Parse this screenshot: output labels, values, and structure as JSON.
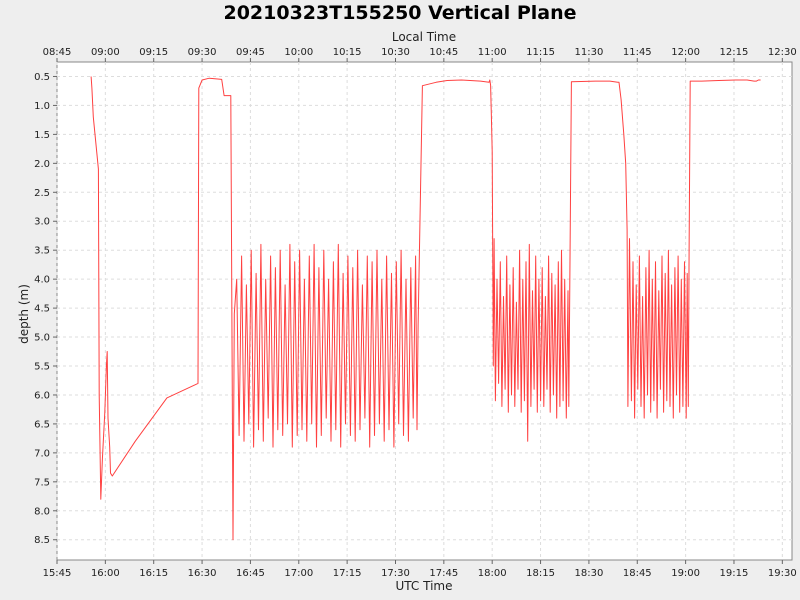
{
  "chart_data": {
    "type": "line",
    "title": "20210323T155250 Vertical Plane",
    "xlabel": "UTC Time",
    "x2label": "Local Time",
    "ylabel": "depth (m)",
    "xlim": [
      "15:45",
      "19:33"
    ],
    "ylim": [
      0.25,
      8.85
    ],
    "y_inverted": true,
    "grid": true,
    "line_color": "#ff4040",
    "x_ticks": [
      "15:45",
      "16:00",
      "16:15",
      "16:30",
      "16:45",
      "17:00",
      "17:15",
      "17:30",
      "17:45",
      "18:00",
      "18:15",
      "18:30",
      "18:45",
      "19:00",
      "19:15",
      "19:30"
    ],
    "x2_ticks": [
      "08:45",
      "09:00",
      "09:15",
      "09:30",
      "09:45",
      "10:00",
      "10:15",
      "10:30",
      "10:45",
      "11:00",
      "11:15",
      "11:30",
      "11:45",
      "12:00",
      "12:15",
      "12:30"
    ],
    "y_ticks": [
      "0.5",
      "1.0",
      "1.5",
      "2.0",
      "2.5",
      "3.0",
      "3.5",
      "4.0",
      "4.5",
      "5.0",
      "5.5",
      "6.0",
      "6.5",
      "7.0",
      "7.5",
      "8.0",
      "8.5"
    ],
    "series": [
      {
        "values": [
          {
            "x": "15:55:35",
            "y": 0.5
          },
          {
            "x": "15:55:50",
            "y": 0.7
          },
          {
            "x": "15:56:15",
            "y": 1.2
          },
          {
            "x": "15:57:50",
            "y": 2.1
          },
          {
            "x": "15:58:05",
            "y": 6.0
          },
          {
            "x": "15:58:35",
            "y": 7.8
          },
          {
            "x": "15:59:05",
            "y": 7.1
          },
          {
            "x": "15:59:50",
            "y": 6.3
          },
          {
            "x": "16:00:20",
            "y": 5.5
          },
          {
            "x": "16:00:35",
            "y": 5.25
          },
          {
            "x": "16:00:50",
            "y": 6.4
          },
          {
            "x": "16:01:20",
            "y": 6.9
          },
          {
            "x": "16:01:35",
            "y": 7.35
          },
          {
            "x": "16:02:10",
            "y": 7.4
          },
          {
            "x": "16:09:15",
            "y": 6.8
          },
          {
            "x": "16:19:05",
            "y": 6.05
          },
          {
            "x": "16:28:45",
            "y": 5.8
          },
          {
            "x": "16:29:00",
            "y": 0.7
          },
          {
            "x": "16:30:00",
            "y": 0.56
          },
          {
            "x": "16:32:15",
            "y": 0.53
          },
          {
            "x": "16:36:05",
            "y": 0.55
          },
          {
            "x": "16:36:50",
            "y": 0.83
          },
          {
            "x": "16:38:55",
            "y": 0.83
          },
          {
            "x": "16:39:35",
            "y": 8.5
          },
          {
            "x": "16:40:00",
            "y": 4.6
          },
          {
            "x": "16:40:45",
            "y": 4.0
          },
          {
            "x": "16:41:30",
            "y": 6.7
          },
          {
            "x": "16:42:15",
            "y": 3.6
          },
          {
            "x": "16:43:00",
            "y": 6.8
          },
          {
            "x": "16:43:45",
            "y": 4.1
          },
          {
            "x": "16:44:30",
            "y": 6.5
          },
          {
            "x": "16:45:15",
            "y": 3.5
          },
          {
            "x": "16:46:00",
            "y": 6.9
          },
          {
            "x": "16:46:45",
            "y": 3.9
          },
          {
            "x": "16:47:30",
            "y": 6.6
          },
          {
            "x": "16:48:15",
            "y": 3.4
          },
          {
            "x": "16:49:00",
            "y": 6.8
          },
          {
            "x": "16:49:45",
            "y": 4.0
          },
          {
            "x": "16:50:30",
            "y": 6.4
          },
          {
            "x": "16:51:15",
            "y": 3.6
          },
          {
            "x": "16:52:00",
            "y": 6.9
          },
          {
            "x": "16:52:45",
            "y": 3.8
          },
          {
            "x": "16:53:30",
            "y": 6.6
          },
          {
            "x": "16:54:15",
            "y": 3.5
          },
          {
            "x": "16:55:00",
            "y": 6.7
          },
          {
            "x": "16:55:45",
            "y": 4.1
          },
          {
            "x": "16:56:30",
            "y": 6.5
          },
          {
            "x": "16:57:15",
            "y": 3.4
          },
          {
            "x": "16:58:00",
            "y": 6.9
          },
          {
            "x": "16:58:45",
            "y": 3.7
          },
          {
            "x": "16:59:30",
            "y": 6.7
          },
          {
            "x": "17:00:15",
            "y": 3.5
          },
          {
            "x": "17:01:00",
            "y": 6.6
          },
          {
            "x": "17:01:45",
            "y": 4.0
          },
          {
            "x": "17:02:30",
            "y": 6.8
          },
          {
            "x": "17:03:15",
            "y": 3.6
          },
          {
            "x": "17:04:00",
            "y": 6.5
          },
          {
            "x": "17:04:45",
            "y": 3.4
          },
          {
            "x": "17:05:30",
            "y": 6.9
          },
          {
            "x": "17:06:15",
            "y": 3.8
          },
          {
            "x": "17:07:00",
            "y": 6.7
          },
          {
            "x": "17:07:45",
            "y": 3.5
          },
          {
            "x": "17:08:30",
            "y": 6.4
          },
          {
            "x": "17:09:15",
            "y": 4.0
          },
          {
            "x": "17:10:00",
            "y": 6.8
          },
          {
            "x": "17:10:45",
            "y": 3.7
          },
          {
            "x": "17:11:30",
            "y": 6.6
          },
          {
            "x": "17:12:15",
            "y": 3.4
          },
          {
            "x": "17:13:00",
            "y": 6.9
          },
          {
            "x": "17:13:45",
            "y": 3.9
          },
          {
            "x": "17:14:30",
            "y": 6.5
          },
          {
            "x": "17:15:15",
            "y": 3.6
          },
          {
            "x": "17:16:00",
            "y": 6.7
          },
          {
            "x": "17:16:45",
            "y": 3.8
          },
          {
            "x": "17:17:30",
            "y": 6.8
          },
          {
            "x": "17:18:15",
            "y": 3.5
          },
          {
            "x": "17:19:00",
            "y": 6.6
          },
          {
            "x": "17:19:45",
            "y": 4.1
          },
          {
            "x": "17:20:30",
            "y": 6.4
          },
          {
            "x": "17:21:15",
            "y": 3.6
          },
          {
            "x": "17:22:00",
            "y": 6.9
          },
          {
            "x": "17:22:45",
            "y": 3.7
          },
          {
            "x": "17:23:30",
            "y": 6.7
          },
          {
            "x": "17:24:15",
            "y": 3.5
          },
          {
            "x": "17:25:00",
            "y": 6.5
          },
          {
            "x": "17:25:45",
            "y": 4.0
          },
          {
            "x": "17:26:30",
            "y": 6.8
          },
          {
            "x": "17:27:15",
            "y": 3.6
          },
          {
            "x": "17:28:00",
            "y": 6.6
          },
          {
            "x": "17:28:45",
            "y": 3.9
          },
          {
            "x": "17:29:30",
            "y": 6.9
          },
          {
            "x": "17:30:15",
            "y": 3.7
          },
          {
            "x": "17:31:00",
            "y": 6.5
          },
          {
            "x": "17:31:45",
            "y": 3.5
          },
          {
            "x": "17:32:30",
            "y": 6.7
          },
          {
            "x": "17:33:15",
            "y": 4.0
          },
          {
            "x": "17:34:00",
            "y": 6.8
          },
          {
            "x": "17:34:45",
            "y": 3.8
          },
          {
            "x": "17:35:30",
            "y": 6.4
          },
          {
            "x": "17:36:15",
            "y": 3.6
          },
          {
            "x": "17:36:40",
            "y": 6.6
          },
          {
            "x": "17:37:00",
            "y": 4.8
          },
          {
            "x": "17:38:20",
            "y": 0.66
          },
          {
            "x": "17:42:35",
            "y": 0.6
          },
          {
            "x": "17:46:00",
            "y": 0.57
          },
          {
            "x": "17:50:30",
            "y": 0.56
          },
          {
            "x": "17:56:25",
            "y": 0.58
          },
          {
            "x": "17:59:00",
            "y": 0.6
          },
          {
            "x": "17:59:15",
            "y": 0.56
          },
          {
            "x": "17:59:30",
            "y": 0.65
          },
          {
            "x": "17:59:45",
            "y": 1.2
          },
          {
            "x": "18:00:00",
            "y": 1.8
          },
          {
            "x": "18:00:20",
            "y": 5.5
          },
          {
            "x": "18:00:35",
            "y": 3.3
          },
          {
            "x": "18:01:00",
            "y": 6.1
          },
          {
            "x": "18:01:30",
            "y": 4.0
          },
          {
            "x": "18:02:00",
            "y": 5.8
          },
          {
            "x": "18:02:30",
            "y": 3.7
          },
          {
            "x": "18:03:00",
            "y": 6.2
          },
          {
            "x": "18:03:30",
            "y": 4.3
          },
          {
            "x": "18:04:00",
            "y": 5.9
          },
          {
            "x": "18:04:30",
            "y": 3.6
          },
          {
            "x": "18:05:00",
            "y": 6.3
          },
          {
            "x": "18:05:30",
            "y": 4.1
          },
          {
            "x": "18:06:00",
            "y": 6.0
          },
          {
            "x": "18:06:30",
            "y": 3.8
          },
          {
            "x": "18:07:00",
            "y": 6.2
          },
          {
            "x": "18:07:30",
            "y": 4.4
          },
          {
            "x": "18:08:00",
            "y": 5.9
          },
          {
            "x": "18:08:30",
            "y": 3.5
          },
          {
            "x": "18:09:00",
            "y": 6.3
          },
          {
            "x": "18:09:30",
            "y": 4.0
          },
          {
            "x": "18:10:00",
            "y": 6.1
          },
          {
            "x": "18:10:30",
            "y": 3.7
          },
          {
            "x": "18:11:00",
            "y": 6.8
          },
          {
            "x": "18:11:30",
            "y": 3.4
          },
          {
            "x": "18:12:00",
            "y": 6.2
          },
          {
            "x": "18:12:30",
            "y": 4.2
          },
          {
            "x": "18:13:00",
            "y": 5.9
          },
          {
            "x": "18:13:30",
            "y": 3.6
          },
          {
            "x": "18:14:00",
            "y": 6.3
          },
          {
            "x": "18:14:30",
            "y": 4.0
          },
          {
            "x": "18:15:00",
            "y": 6.1
          },
          {
            "x": "18:15:30",
            "y": 3.8
          },
          {
            "x": "18:16:00",
            "y": 6.2
          },
          {
            "x": "18:16:30",
            "y": 4.3
          },
          {
            "x": "18:17:00",
            "y": 5.9
          },
          {
            "x": "18:17:30",
            "y": 3.6
          },
          {
            "x": "18:18:00",
            "y": 6.3
          },
          {
            "x": "18:18:30",
            "y": 3.9
          },
          {
            "x": "18:19:00",
            "y": 6.0
          },
          {
            "x": "18:19:30",
            "y": 4.1
          },
          {
            "x": "18:20:00",
            "y": 6.4
          },
          {
            "x": "18:20:30",
            "y": 3.7
          },
          {
            "x": "18:21:00",
            "y": 6.2
          },
          {
            "x": "18:21:30",
            "y": 3.5
          },
          {
            "x": "18:22:00",
            "y": 6.1
          },
          {
            "x": "18:22:30",
            "y": 4.0
          },
          {
            "x": "18:23:00",
            "y": 6.4
          },
          {
            "x": "18:23:30",
            "y": 4.2
          },
          {
            "x": "18:23:45",
            "y": 6.2
          },
          {
            "x": "18:24:05",
            "y": 4.1
          },
          {
            "x": "18:24:35",
            "y": 0.59
          },
          {
            "x": "18:32:00",
            "y": 0.58
          },
          {
            "x": "18:36:30",
            "y": 0.58
          },
          {
            "x": "18:38:55",
            "y": 0.6
          },
          {
            "x": "18:39:20",
            "y": 0.6
          },
          {
            "x": "18:40:00",
            "y": 0.9
          },
          {
            "x": "18:40:50",
            "y": 1.5
          },
          {
            "x": "18:41:25",
            "y": 2.0
          },
          {
            "x": "18:41:50",
            "y": 3.15
          },
          {
            "x": "18:42:05",
            "y": 6.2
          },
          {
            "x": "18:42:35",
            "y": 3.3
          },
          {
            "x": "18:43:10",
            "y": 6.1
          },
          {
            "x": "18:43:40",
            "y": 3.7
          },
          {
            "x": "18:44:10",
            "y": 6.4
          },
          {
            "x": "18:44:40",
            "y": 4.1
          },
          {
            "x": "18:45:10",
            "y": 5.9
          },
          {
            "x": "18:45:40",
            "y": 3.6
          },
          {
            "x": "18:46:10",
            "y": 6.2
          },
          {
            "x": "18:46:40",
            "y": 4.3
          },
          {
            "x": "18:47:10",
            "y": 6.4
          },
          {
            "x": "18:47:40",
            "y": 3.8
          },
          {
            "x": "18:48:10",
            "y": 6.0
          },
          {
            "x": "18:48:40",
            "y": 3.5
          },
          {
            "x": "18:49:10",
            "y": 6.3
          },
          {
            "x": "18:49:40",
            "y": 4.0
          },
          {
            "x": "18:50:10",
            "y": 6.1
          },
          {
            "x": "18:50:40",
            "y": 3.7
          },
          {
            "x": "18:51:10",
            "y": 6.4
          },
          {
            "x": "18:51:40",
            "y": 4.2
          },
          {
            "x": "18:52:10",
            "y": 5.9
          },
          {
            "x": "18:52:40",
            "y": 3.6
          },
          {
            "x": "18:53:10",
            "y": 6.3
          },
          {
            "x": "18:53:40",
            "y": 3.9
          },
          {
            "x": "18:54:10",
            "y": 6.1
          },
          {
            "x": "18:54:40",
            "y": 3.5
          },
          {
            "x": "18:55:10",
            "y": 6.2
          },
          {
            "x": "18:55:40",
            "y": 4.1
          },
          {
            "x": "18:56:10",
            "y": 6.4
          },
          {
            "x": "18:56:40",
            "y": 3.8
          },
          {
            "x": "18:57:10",
            "y": 6.0
          },
          {
            "x": "18:57:40",
            "y": 3.6
          },
          {
            "x": "18:58:10",
            "y": 6.3
          },
          {
            "x": "18:58:40",
            "y": 4.0
          },
          {
            "x": "18:59:10",
            "y": 6.2
          },
          {
            "x": "18:59:40",
            "y": 3.7
          },
          {
            "x": "19:00:10",
            "y": 6.4
          },
          {
            "x": "19:00:30",
            "y": 3.9
          },
          {
            "x": "19:00:50",
            "y": 6.2
          },
          {
            "x": "19:01:05",
            "y": 3.5
          },
          {
            "x": "19:01:25",
            "y": 0.58
          },
          {
            "x": "19:05:00",
            "y": 0.58
          },
          {
            "x": "19:10:15",
            "y": 0.57
          },
          {
            "x": "19:15:30",
            "y": 0.56
          },
          {
            "x": "19:19:05",
            "y": 0.56
          },
          {
            "x": "19:21:15",
            "y": 0.58
          },
          {
            "x": "19:22:00",
            "y": 0.58
          },
          {
            "x": "19:22:35",
            "y": 0.56
          },
          {
            "x": "19:23:15",
            "y": 0.56
          }
        ]
      }
    ]
  }
}
